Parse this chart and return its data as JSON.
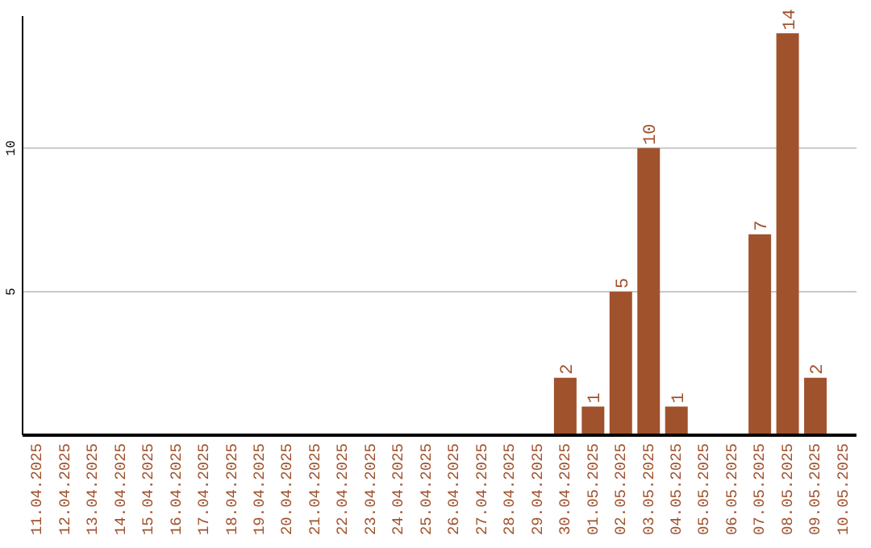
{
  "chart_data": {
    "type": "bar",
    "categories": [
      "11.04.2025",
      "12.04.2025",
      "13.04.2025",
      "14.04.2025",
      "15.04.2025",
      "16.04.2025",
      "17.04.2025",
      "18.04.2025",
      "19.04.2025",
      "20.04.2025",
      "21.04.2025",
      "22.04.2025",
      "23.04.2025",
      "24.04.2025",
      "25.04.2025",
      "26.04.2025",
      "27.04.2025",
      "28.04.2025",
      "29.04.2025",
      "30.04.2025",
      "01.05.2025",
      "02.05.2025",
      "03.05.2025",
      "04.05.2025",
      "05.05.2025",
      "06.05.2025",
      "07.05.2025",
      "08.05.2025",
      "09.05.2025",
      "10.05.2025"
    ],
    "values": [
      0,
      0,
      0,
      0,
      0,
      0,
      0,
      0,
      0,
      0,
      0,
      0,
      0,
      0,
      0,
      0,
      0,
      0,
      0,
      2,
      1,
      5,
      10,
      1,
      0,
      0,
      7,
      14,
      2,
      0
    ],
    "value_labels": [
      null,
      null,
      null,
      null,
      null,
      null,
      null,
      null,
      null,
      null,
      null,
      null,
      null,
      null,
      null,
      null,
      null,
      null,
      null,
      "2",
      "1",
      "5",
      "10",
      "1",
      null,
      null,
      "7",
      "14",
      "2",
      null
    ],
    "color": "#a0522d",
    "ylim": [
      0,
      14.6
    ],
    "yticks": [
      5,
      10
    ],
    "grid": "y"
  }
}
